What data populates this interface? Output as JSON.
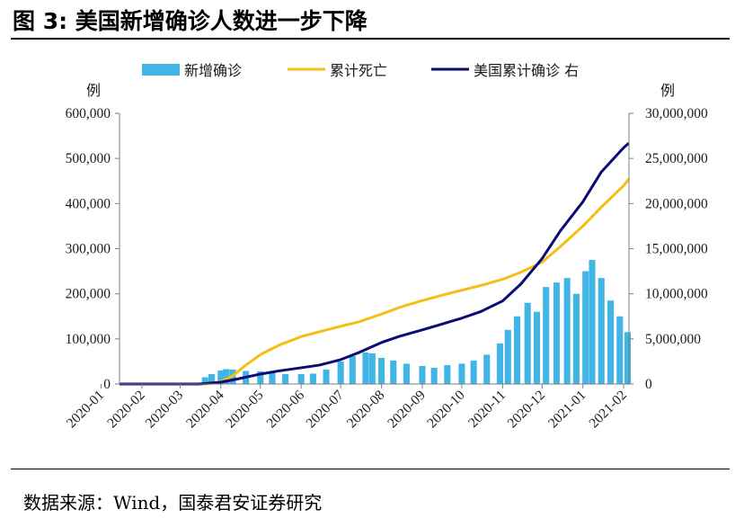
{
  "title": "图 3:  美国新增确诊人数进一步下降",
  "source": "数据来源：Wind，国泰君安证券研究",
  "chart_data": {
    "type": "bar+line",
    "legend": [
      "新增确诊",
      "累计死亡",
      "美国累计确诊 右"
    ],
    "legend_position": "top-center",
    "y_left_unit": "例",
    "y_right_unit": "例",
    "y_left_ticks": [
      "0",
      "100,000",
      "200,000",
      "300,000",
      "400,000",
      "500,000",
      "600,000"
    ],
    "y_right_ticks": [
      "0",
      "5,000,000",
      "10,000,000",
      "15,000,000",
      "20,000,000",
      "25,000,000",
      "30,000,000"
    ],
    "y_left_range": [
      0,
      600000
    ],
    "y_right_range": [
      0,
      30000000
    ],
    "x_range": [
      "2020-01-15",
      "2021-02-05"
    ],
    "x_ticks": [
      "2020-01",
      "2020-02",
      "2020-03",
      "2020-04",
      "2020-05",
      "2020-06",
      "2020-07",
      "2020-08",
      "2020-09",
      "2020-10",
      "2020-11",
      "2020-12",
      "2021-01",
      "2021-02"
    ],
    "grid": false,
    "colors": {
      "new_cases": "#41b6e6",
      "cumulative_deaths": "#f5be15",
      "cumulative_cases": "#0b0b73"
    },
    "new_cases": {
      "name": "新增确诊",
      "axis": "left",
      "points": [
        [
          "2020-01-15",
          0
        ],
        [
          "2020-03-01",
          0
        ],
        [
          "2020-03-10",
          500
        ],
        [
          "2020-03-15",
          3000
        ],
        [
          "2020-03-20",
          15000
        ],
        [
          "2020-03-25",
          22000
        ],
        [
          "2020-04-01",
          30000
        ],
        [
          "2020-04-05",
          33000
        ],
        [
          "2020-04-10",
          32000
        ],
        [
          "2020-04-20",
          29000
        ],
        [
          "2020-05-01",
          28000
        ],
        [
          "2020-05-10",
          25000
        ],
        [
          "2020-05-20",
          22000
        ],
        [
          "2020-06-01",
          22000
        ],
        [
          "2020-06-10",
          23000
        ],
        [
          "2020-06-20",
          32000
        ],
        [
          "2020-07-01",
          50000
        ],
        [
          "2020-07-10",
          62000
        ],
        [
          "2020-07-20",
          70000
        ],
        [
          "2020-07-25",
          68000
        ],
        [
          "2020-08-01",
          58000
        ],
        [
          "2020-08-10",
          52000
        ],
        [
          "2020-08-20",
          45000
        ],
        [
          "2020-09-01",
          40000
        ],
        [
          "2020-09-10",
          36000
        ],
        [
          "2020-09-20",
          42000
        ],
        [
          "2020-10-01",
          45000
        ],
        [
          "2020-10-10",
          52000
        ],
        [
          "2020-10-20",
          65000
        ],
        [
          "2020-10-30",
          90000
        ],
        [
          "2020-11-05",
          120000
        ],
        [
          "2020-11-12",
          150000
        ],
        [
          "2020-11-20",
          180000
        ],
        [
          "2020-11-27",
          160000
        ],
        [
          "2020-12-04",
          215000
        ],
        [
          "2020-12-12",
          225000
        ],
        [
          "2020-12-20",
          235000
        ],
        [
          "2020-12-27",
          200000
        ],
        [
          "2021-01-03",
          250000
        ],
        [
          "2021-01-08",
          275000
        ],
        [
          "2021-01-15",
          235000
        ],
        [
          "2021-01-22",
          185000
        ],
        [
          "2021-01-29",
          150000
        ],
        [
          "2021-02-04",
          115000
        ]
      ]
    },
    "cumulative_deaths": {
      "name": "累计死亡",
      "axis": "left",
      "points": [
        [
          "2020-01-15",
          0
        ],
        [
          "2020-03-01",
          0
        ],
        [
          "2020-03-15",
          100
        ],
        [
          "2020-03-25",
          1000
        ],
        [
          "2020-04-01",
          5000
        ],
        [
          "2020-04-10",
          18000
        ],
        [
          "2020-04-20",
          42000
        ],
        [
          "2020-05-01",
          65000
        ],
        [
          "2020-05-15",
          86000
        ],
        [
          "2020-06-01",
          105000
        ],
        [
          "2020-06-15",
          116000
        ],
        [
          "2020-07-01",
          128000
        ],
        [
          "2020-07-15",
          138000
        ],
        [
          "2020-08-01",
          155000
        ],
        [
          "2020-08-15",
          170000
        ],
        [
          "2020-09-01",
          185000
        ],
        [
          "2020-09-15",
          196000
        ],
        [
          "2020-10-01",
          208000
        ],
        [
          "2020-10-15",
          218000
        ],
        [
          "2020-11-01",
          232000
        ],
        [
          "2020-11-15",
          248000
        ],
        [
          "2020-12-01",
          270000
        ],
        [
          "2020-12-15",
          305000
        ],
        [
          "2021-01-01",
          350000
        ],
        [
          "2021-01-15",
          392000
        ],
        [
          "2021-02-01",
          440000
        ],
        [
          "2021-02-05",
          455000
        ]
      ]
    },
    "cumulative_cases": {
      "name": "美国累计确诊 右",
      "axis": "right",
      "points": [
        [
          "2020-01-15",
          0
        ],
        [
          "2020-03-01",
          0
        ],
        [
          "2020-03-15",
          3000
        ],
        [
          "2020-04-01",
          200000
        ],
        [
          "2020-04-15",
          600000
        ],
        [
          "2020-05-01",
          1100000
        ],
        [
          "2020-05-15",
          1450000
        ],
        [
          "2020-06-01",
          1800000
        ],
        [
          "2020-06-15",
          2100000
        ],
        [
          "2020-07-01",
          2700000
        ],
        [
          "2020-07-15",
          3500000
        ],
        [
          "2020-08-01",
          4600000
        ],
        [
          "2020-08-15",
          5300000
        ],
        [
          "2020-09-01",
          6000000
        ],
        [
          "2020-09-15",
          6600000
        ],
        [
          "2020-10-01",
          7300000
        ],
        [
          "2020-10-15",
          8000000
        ],
        [
          "2020-11-01",
          9200000
        ],
        [
          "2020-11-15",
          11100000
        ],
        [
          "2020-12-01",
          13900000
        ],
        [
          "2020-12-15",
          17000000
        ],
        [
          "2021-01-01",
          20200000
        ],
        [
          "2021-01-15",
          23500000
        ],
        [
          "2021-02-01",
          26200000
        ],
        [
          "2021-02-05",
          26700000
        ]
      ]
    }
  }
}
